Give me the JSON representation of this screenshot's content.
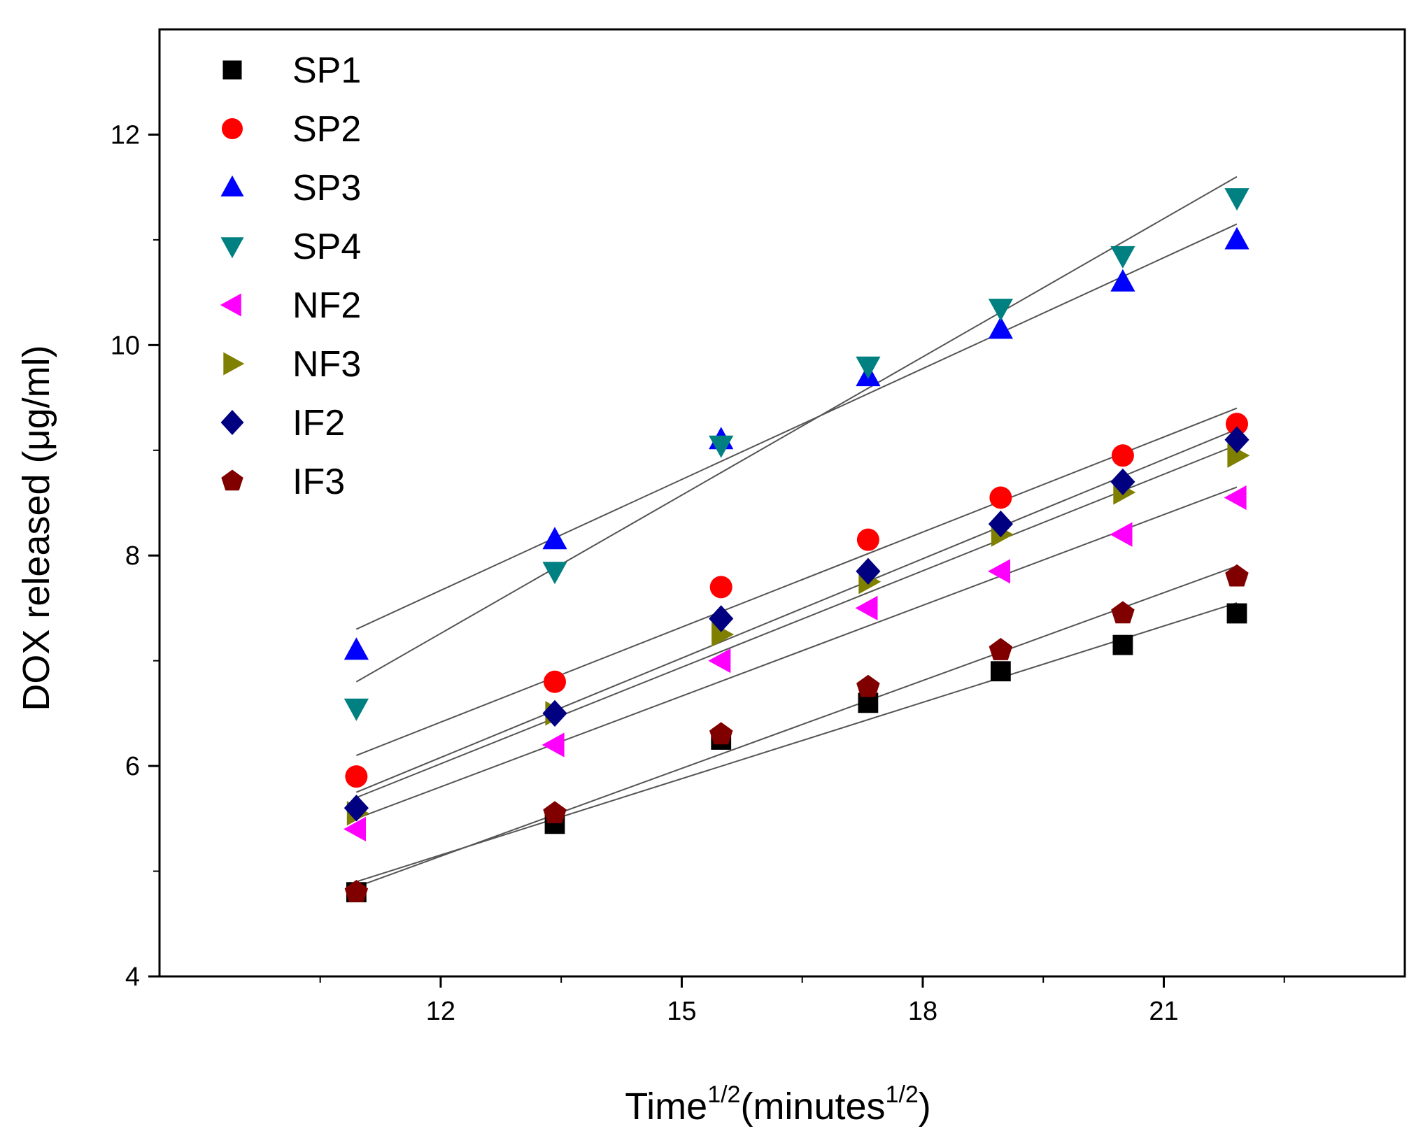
{
  "chart_data": {
    "type": "scatter",
    "title": "",
    "xlabel": {
      "base": "Time",
      "sup1": "1/2",
      "mid": "(minutes",
      "sup2": "1/2",
      "end": ")"
    },
    "ylabel": "DOX released (μg/ml)",
    "xlim": [
      8.5,
      24.0
    ],
    "ylim": [
      4,
      13
    ],
    "xticks": [
      12,
      15,
      18,
      21
    ],
    "xtick_labels": [
      "12",
      "15",
      "18",
      "21"
    ],
    "yticks": [
      4,
      6,
      8,
      10,
      12
    ],
    "ytick_labels": [
      "4",
      "6",
      "8",
      "10",
      "12"
    ],
    "x": [
      10.95,
      13.42,
      15.49,
      17.32,
      18.97,
      20.49,
      21.91
    ],
    "legend_position": "top-left",
    "series": [
      {
        "name": "SP1",
        "marker": "square",
        "color": "#000000",
        "values": [
          4.8,
          5.45,
          6.25,
          6.6,
          6.9,
          7.15,
          7.45
        ],
        "fit": [
          4.9,
          7.55
        ]
      },
      {
        "name": "SP2",
        "marker": "circle",
        "color": "#ff0000",
        "values": [
          5.9,
          6.8,
          7.7,
          8.15,
          8.55,
          8.95,
          9.25
        ],
        "fit": [
          6.1,
          9.4
        ]
      },
      {
        "name": "SP3",
        "marker": "triangle-up",
        "color": "#0000ff",
        "values": [
          7.1,
          8.15,
          9.1,
          9.7,
          10.15,
          10.6,
          11.0
        ],
        "fit": [
          7.3,
          11.15
        ]
      },
      {
        "name": "SP4",
        "marker": "triangle-down",
        "color": "#008080",
        "values": [
          6.55,
          7.85,
          9.05,
          9.8,
          10.35,
          10.85,
          11.4
        ],
        "fit": [
          6.8,
          11.6
        ]
      },
      {
        "name": "NF2",
        "marker": "triangle-left",
        "color": "#ff00ff",
        "values": [
          5.4,
          6.2,
          7.0,
          7.5,
          7.85,
          8.2,
          8.55
        ],
        "fit": [
          5.5,
          8.65
        ]
      },
      {
        "name": "NF3",
        "marker": "triangle-right",
        "color": "#808000",
        "values": [
          5.55,
          6.5,
          7.25,
          7.75,
          8.2,
          8.6,
          8.95
        ],
        "fit": [
          5.7,
          9.05
        ]
      },
      {
        "name": "IF2",
        "marker": "diamond",
        "color": "#000080",
        "values": [
          5.6,
          6.5,
          7.4,
          7.85,
          8.3,
          8.7,
          9.1
        ],
        "fit": [
          5.75,
          9.2
        ]
      },
      {
        "name": "IF3",
        "marker": "pentagon",
        "color": "#800000",
        "values": [
          4.8,
          5.55,
          6.3,
          6.75,
          7.1,
          7.45,
          7.8
        ],
        "fit": [
          4.85,
          7.9
        ]
      }
    ]
  }
}
